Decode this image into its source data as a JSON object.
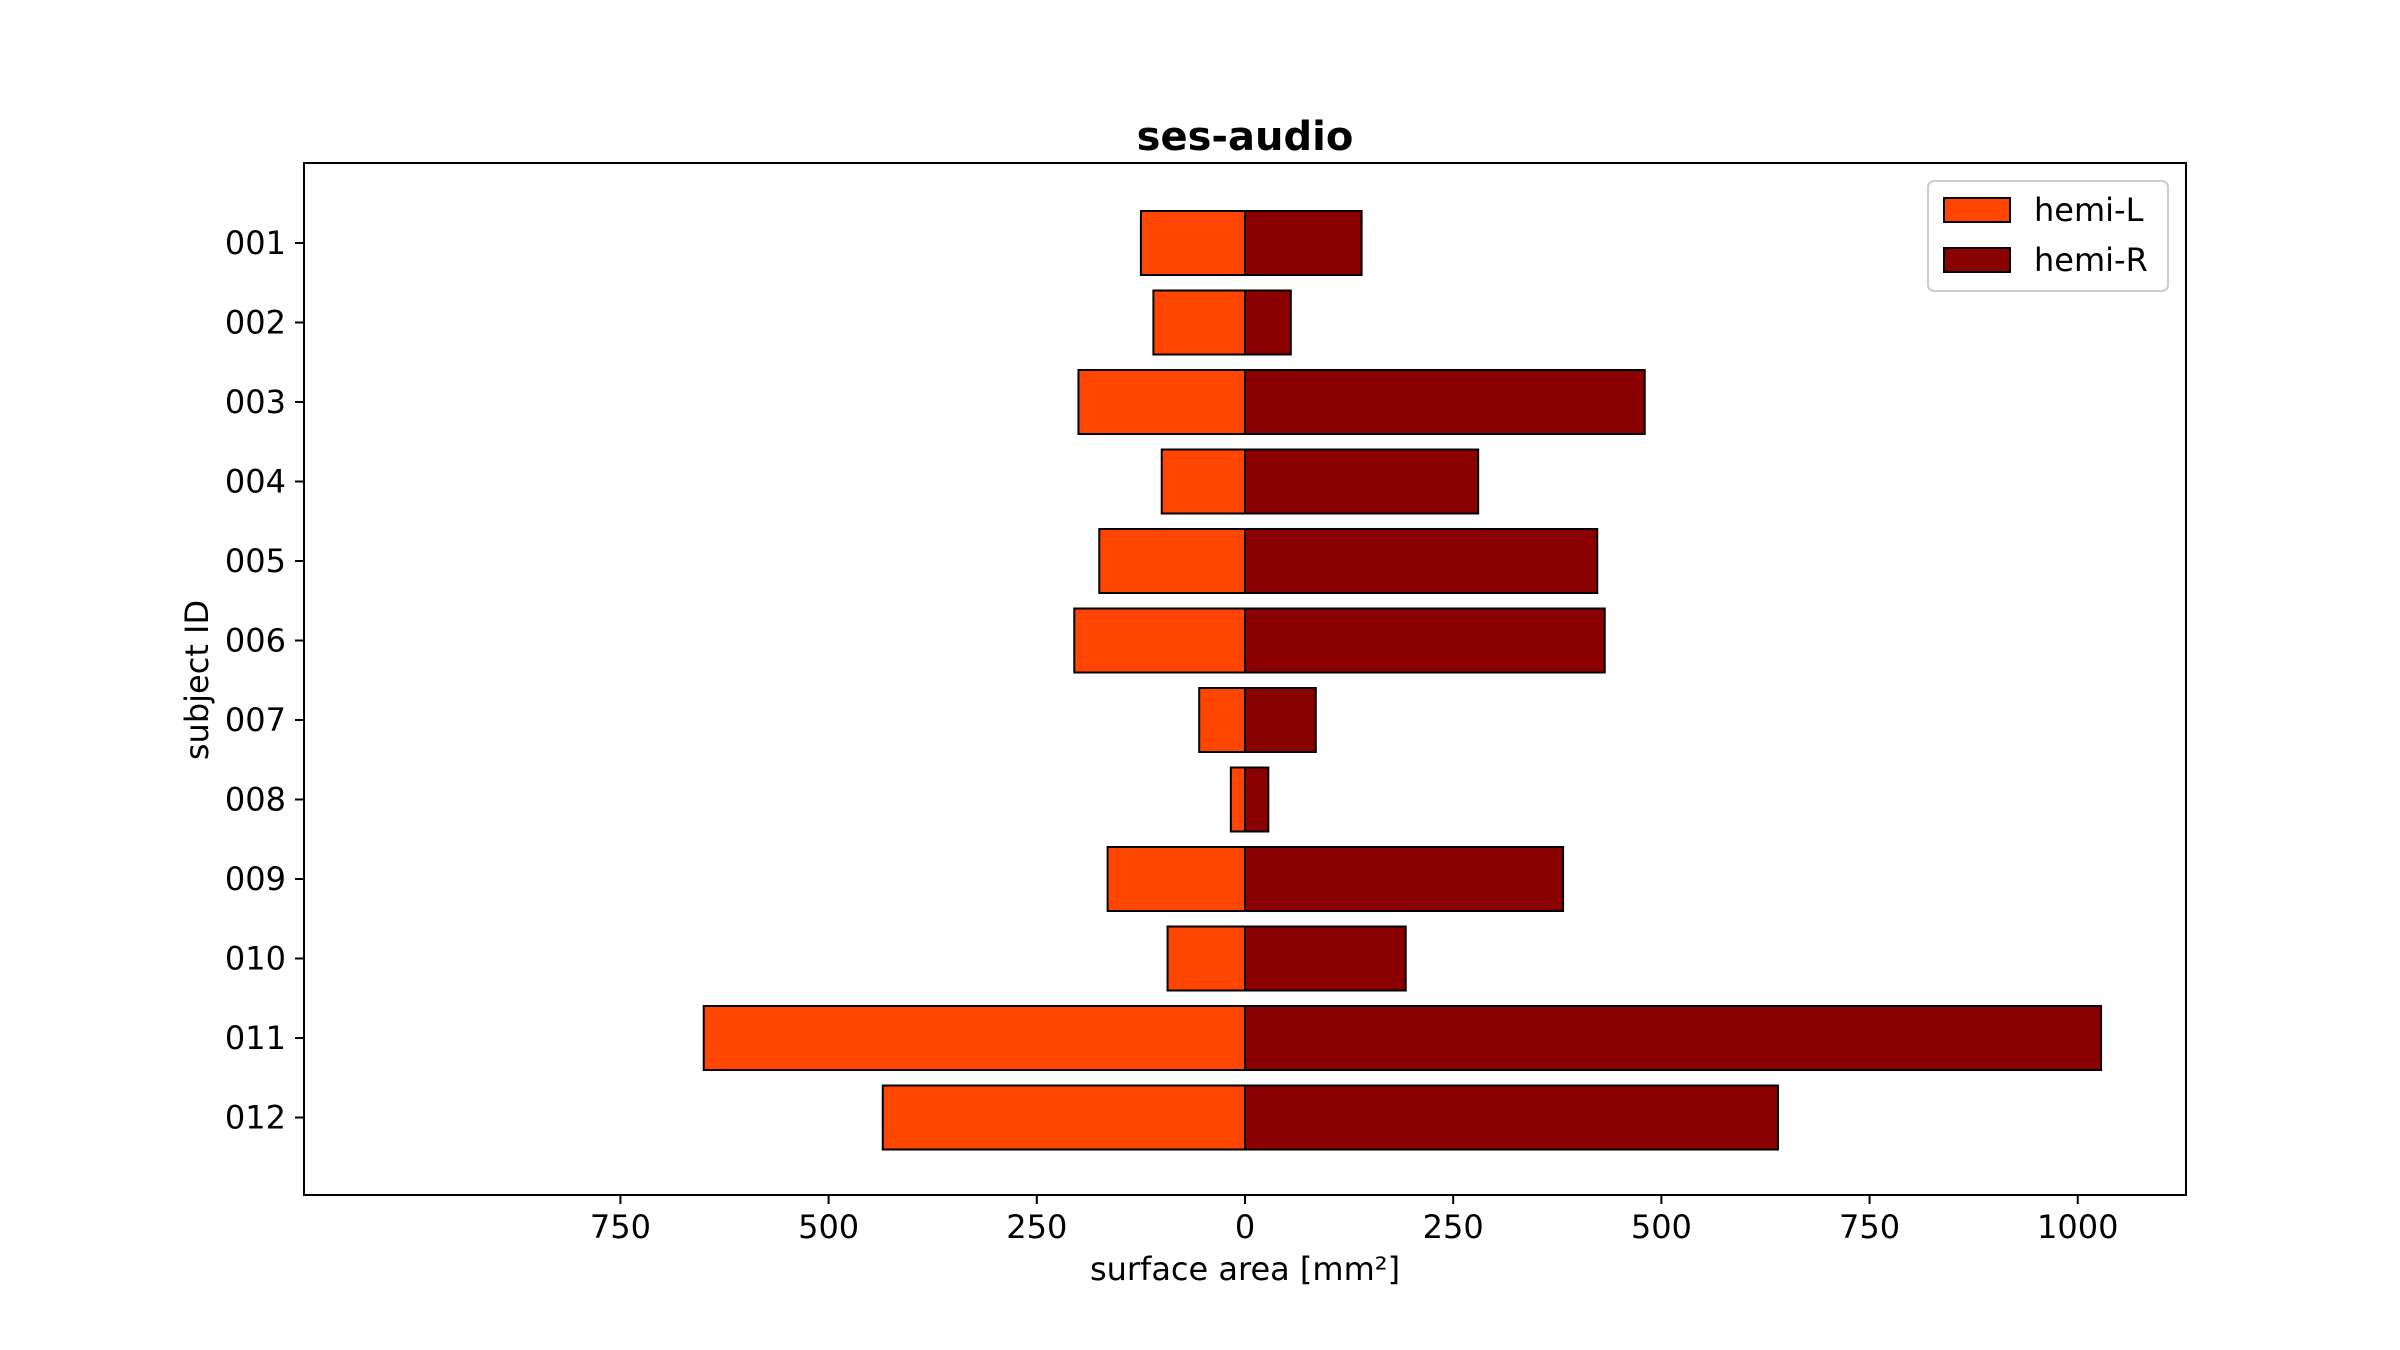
{
  "chart_data": {
    "type": "bar",
    "orientation": "horizontal",
    "layout": "diverging",
    "title": "ses-audio",
    "xlabel": "surface area [mm²]",
    "ylabel": "subject ID",
    "categories": [
      "001",
      "002",
      "003",
      "004",
      "005",
      "006",
      "007",
      "008",
      "009",
      "010",
      "011",
      "012"
    ],
    "series": [
      {
        "name": "hemi-L",
        "color": "#ff4500",
        "direction": "left",
        "values": [
          125,
          110,
          200,
          100,
          175,
          205,
          55,
          17,
          165,
          93,
          650,
          435
        ]
      },
      {
        "name": "hemi-R",
        "color": "#8b0000",
        "direction": "right",
        "values": [
          140,
          55,
          480,
          280,
          423,
          432,
          85,
          28,
          382,
          193,
          1028,
          640
        ]
      }
    ],
    "xlim": [
      -1130,
      1130
    ],
    "xticks": [
      -750,
      -500,
      -250,
      0,
      250,
      500,
      750,
      1000
    ],
    "xtick_labels": [
      "750",
      "500",
      "250",
      "0",
      "250",
      "500",
      "750",
      "1000"
    ],
    "grid": false,
    "legend_position": "upper right"
  }
}
